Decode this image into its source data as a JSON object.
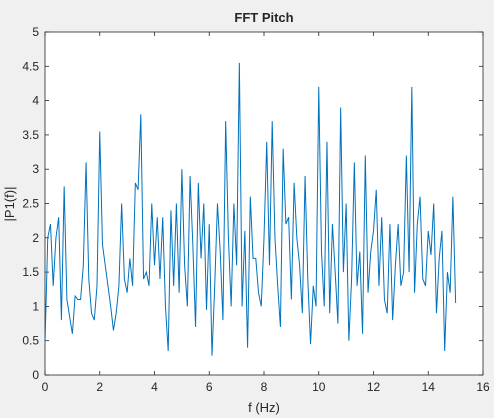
{
  "chart_data": {
    "type": "line",
    "title": "FFT Pitch",
    "xlabel": "f (Hz)",
    "ylabel": "|P1(f)|",
    "x": [
      0,
      0.1,
      0.2,
      0.3,
      0.4,
      0.5,
      0.6,
      0.7,
      0.8,
      0.9,
      1,
      1.1,
      1.2,
      1.3,
      1.4,
      1.5,
      1.6,
      1.7,
      1.8,
      1.9,
      2,
      2.1,
      2.2,
      2.3,
      2.4,
      2.5,
      2.6,
      2.7,
      2.8,
      2.9,
      3,
      3.1,
      3.2,
      3.3,
      3.4,
      3.5,
      3.6,
      3.7,
      3.8,
      3.9,
      4,
      4.1,
      4.2,
      4.3,
      4.4,
      4.5,
      4.6,
      4.7,
      4.8,
      4.9,
      5,
      5.1,
      5.2,
      5.3,
      5.4,
      5.5,
      5.6,
      5.7,
      5.8,
      5.9,
      6,
      6.1,
      6.2,
      6.3,
      6.4,
      6.5,
      6.6,
      6.7,
      6.8,
      6.9,
      7,
      7.1,
      7.2,
      7.3,
      7.4,
      7.5,
      7.6,
      7.7,
      7.8,
      7.9,
      8,
      8.1,
      8.2,
      8.3,
      8.4,
      8.5,
      8.6,
      8.7,
      8.8,
      8.9,
      9,
      9.1,
      9.2,
      9.3,
      9.4,
      9.5,
      9.6,
      9.7,
      9.8,
      9.9,
      10,
      10.1,
      10.2,
      10.3,
      10.4,
      10.5,
      10.6,
      10.7,
      10.8,
      10.9,
      11,
      11.1,
      11.2,
      11.3,
      11.4,
      11.5,
      11.6,
      11.7,
      11.8,
      11.9,
      12,
      12.1,
      12.2,
      12.3,
      12.4,
      12.5,
      12.6,
      12.7,
      12.8,
      12.9,
      13,
      13.1,
      13.2,
      13.3,
      13.4,
      13.5,
      13.6,
      13.7,
      13.8,
      13.9,
      14,
      14.1,
      14.2,
      14.3,
      14.4,
      14.5,
      14.6,
      14.7,
      14.8,
      14.9,
      15
    ],
    "series": [
      {
        "color": "#0072bd",
        "values": [
          0.45,
          2.0,
          2.2,
          1.3,
          2.0,
          2.3,
          0.8,
          2.75,
          1.1,
          0.85,
          0.6,
          1.15,
          1.1,
          1.1,
          1.6,
          3.1,
          1.4,
          0.9,
          0.8,
          1.3,
          3.55,
          1.9,
          1.6,
          1.3,
          1.0,
          0.65,
          0.9,
          1.3,
          2.5,
          1.4,
          1.2,
          1.7,
          1.3,
          2.8,
          2.7,
          3.8,
          1.4,
          1.5,
          1.3,
          2.5,
          1.6,
          2.3,
          1.4,
          2.3,
          1.0,
          0.35,
          2.4,
          1.3,
          2.5,
          1.2,
          3.0,
          1.6,
          1.0,
          2.9,
          1.9,
          0.7,
          2.8,
          1.7,
          2.5,
          0.95,
          2.2,
          0.28,
          1.3,
          2.5,
          1.8,
          0.8,
          3.7,
          2.0,
          1.0,
          2.5,
          1.6,
          4.55,
          1.0,
          2.1,
          0.4,
          2.6,
          1.7,
          1.7,
          1.2,
          1.0,
          2.0,
          3.4,
          1.6,
          3.7,
          2.0,
          1.3,
          0.7,
          3.3,
          2.2,
          2.3,
          1.1,
          2.8,
          2.0,
          1.6,
          0.9,
          2.9,
          1.4,
          0.45,
          1.3,
          1.0,
          4.2,
          1.8,
          1.0,
          3.4,
          0.9,
          2.2,
          1.5,
          0.75,
          3.9,
          1.5,
          2.5,
          0.5,
          1.4,
          3.1,
          1.3,
          1.8,
          0.6,
          3.2,
          1.2,
          1.8,
          2.1,
          2.7,
          1.3,
          2.3,
          1.1,
          0.9,
          2.2,
          0.8,
          1.6,
          2.2,
          1.3,
          1.5,
          3.2,
          1.5,
          4.2,
          1.2,
          2.2,
          2.6,
          1.4,
          1.3,
          2.1,
          1.75,
          2.5,
          0.9,
          1.7,
          2.1,
          0.35,
          1.5,
          1.2,
          2.6,
          1.05
        ]
      }
    ],
    "xlim": [
      0,
      16
    ],
    "xticks": [
      0,
      2,
      4,
      6,
      8,
      10,
      12,
      14,
      16
    ],
    "ylim": [
      0,
      5
    ],
    "yticks": [
      0,
      0.5,
      1,
      1.5,
      2,
      2.5,
      3,
      3.5,
      4,
      4.5,
      5
    ]
  }
}
